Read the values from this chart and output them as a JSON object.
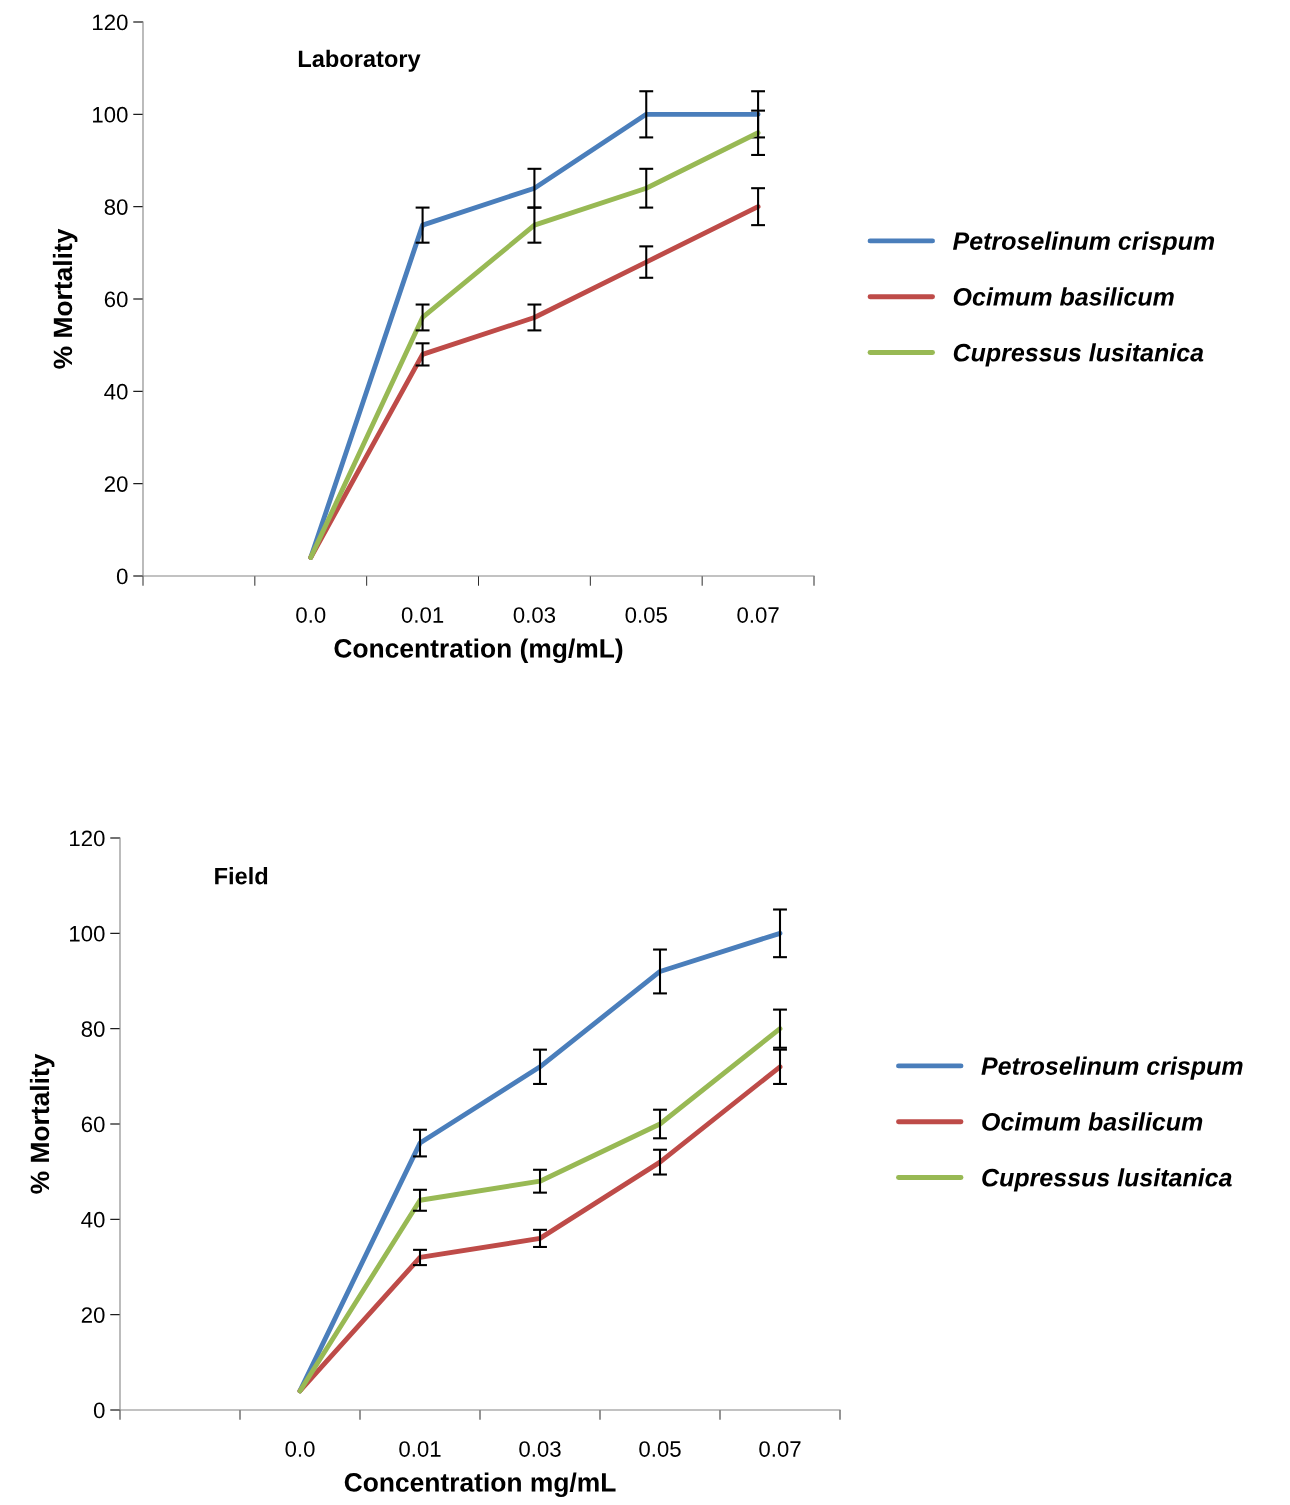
{
  "chart_data": [
    {
      "type": "line",
      "annotations": [
        "Laboratory"
      ],
      "xlabel": "Concentration (mg/mL)",
      "ylabel": "% Mortality",
      "categories": [
        null,
        "0.0",
        "0.01",
        "0.03",
        "0.05",
        "0.07"
      ],
      "ylim": [
        0,
        120
      ],
      "yticks": [
        0,
        20,
        40,
        60,
        80,
        100,
        120
      ],
      "grid": false,
      "legend": "right",
      "marker": "none",
      "line_style": "solid",
      "series": [
        {
          "name": "Petroselinum crispum",
          "color": "#4a7ebb",
          "values": [
            null,
            4,
            76,
            84,
            100,
            100
          ],
          "errors": [
            null,
            null,
            3.8,
            4.2,
            5,
            5
          ]
        },
        {
          "name": "Ocimum basilicum",
          "color": "#be4b48",
          "values": [
            null,
            4,
            48,
            56,
            68,
            80
          ],
          "errors": [
            null,
            null,
            2.4,
            2.8,
            3.4,
            4
          ]
        },
        {
          "name": "Cupressus lusitanica",
          "color": "#98b954",
          "values": [
            null,
            4,
            56,
            76,
            84,
            96
          ],
          "errors": [
            null,
            null,
            2.8,
            3.8,
            4.2,
            4.8
          ]
        }
      ]
    },
    {
      "type": "line",
      "annotations": [
        "Field"
      ],
      "xlabel": "Concentration mg/mL",
      "ylabel": "% Mortality",
      "categories": [
        null,
        "0.0",
        "0.01",
        "0.03",
        "0.05",
        "0.07"
      ],
      "ylim": [
        0,
        120
      ],
      "yticks": [
        0,
        20,
        40,
        60,
        80,
        100,
        120
      ],
      "grid": false,
      "legend": "right",
      "marker": "none",
      "line_style": "solid",
      "series": [
        {
          "name": "Petroselinum crispum",
          "color": "#4a7ebb",
          "values": [
            null,
            4,
            56,
            72,
            92,
            100
          ],
          "errors": [
            null,
            null,
            2.8,
            3.6,
            4.6,
            5
          ]
        },
        {
          "name": "Ocimum basilicum",
          "color": "#be4b48",
          "values": [
            null,
            4,
            32,
            36,
            52,
            72
          ],
          "errors": [
            null,
            null,
            1.6,
            1.8,
            2.6,
            3.6
          ]
        },
        {
          "name": "Cupressus lusitanica",
          "color": "#98b954",
          "values": [
            null,
            4,
            44,
            48,
            60,
            80
          ],
          "errors": [
            null,
            null,
            2.2,
            2.4,
            3,
            4
          ]
        }
      ]
    }
  ]
}
